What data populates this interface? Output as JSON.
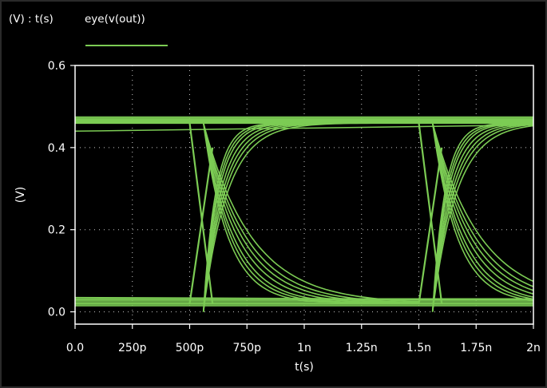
{
  "header": {
    "axes_label": "(V) : t(s)",
    "legend_label": "eye(v(out))"
  },
  "colors": {
    "background": "#000000",
    "trace": "#7ccc54",
    "axis": "#ffffff",
    "grid": "#c8c8c8"
  },
  "chart_data": {
    "type": "line",
    "title": "",
    "xlabel": "t(s)",
    "ylabel": "(V)",
    "xlim": [
      0,
      2e-09
    ],
    "ylim": [
      -0.03,
      0.6
    ],
    "x_ticks": [
      {
        "value": 0,
        "label": "0.0"
      },
      {
        "value": 2.5e-10,
        "label": "250p"
      },
      {
        "value": 5e-10,
        "label": "500p"
      },
      {
        "value": 7.5e-10,
        "label": "750p"
      },
      {
        "value": 1e-09,
        "label": "1n"
      },
      {
        "value": 1.25e-09,
        "label": "1.25n"
      },
      {
        "value": 1.5e-09,
        "label": "1.5n"
      },
      {
        "value": 1.75e-09,
        "label": "1.75n"
      },
      {
        "value": 2e-09,
        "label": "2n"
      }
    ],
    "y_ticks": [
      {
        "value": 0.0,
        "label": "0.0"
      },
      {
        "value": 0.2,
        "label": "0.2"
      },
      {
        "value": 0.4,
        "label": "0.4"
      },
      {
        "value": 0.6,
        "label": "0.6"
      }
    ],
    "grid": true,
    "series": [
      {
        "name": "eye(v(out))",
        "style": "eye diagram (overlaid traces)",
        "high_level": 0.46,
        "low_level": 0.02,
        "crossing_level": 0.24,
        "transition_starts": [
          5e-10,
          1.5e-09
        ]
      }
    ]
  }
}
